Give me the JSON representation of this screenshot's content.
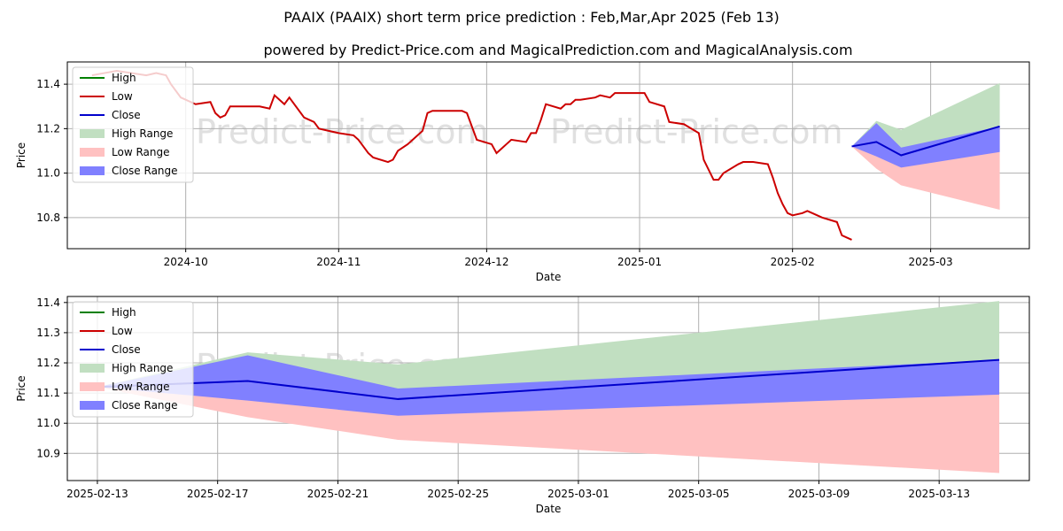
{
  "title": "PAAIX (PAAIX) short term price prediction : Feb,Mar,Apr 2025 (Feb 13)",
  "subtitle": "powered by Predict-Price.com and MagicalPrediction.com and MagicalAnalysis.com",
  "watermark": "Predict-Price.com",
  "legend": [
    "High",
    "Low",
    "Close",
    "High Range",
    "Low Range",
    "Close Range"
  ],
  "colors": {
    "high": "#008000",
    "low": "#cc0000",
    "close": "#0000cc",
    "high_range": "#c1dfc1",
    "low_range": "#ffc1c1",
    "close_range": "#8080ff",
    "grid": "#b0b0b0"
  },
  "chart_data": [
    {
      "type": "line",
      "xlabel": "Date",
      "ylabel": "Price",
      "ylim": [
        10.66,
        11.5
      ],
      "xlim": [
        "2024-09-07",
        "2025-03-21"
      ],
      "x_ticks": [
        "2024-10",
        "2024-11",
        "2024-12",
        "2025-01",
        "2025-02",
        "2025-03"
      ],
      "y_ticks": [
        10.8,
        11.0,
        11.2,
        11.4
      ],
      "grid": true,
      "legend_position": "upper-left",
      "series": [
        {
          "name": "Low",
          "x": [
            "2024-09-12",
            "2024-09-17",
            "2024-09-20",
            "2024-09-23",
            "2024-09-25",
            "2024-09-27",
            "2024-09-28",
            "2024-09-30",
            "2024-10-01",
            "2024-10-03",
            "2024-10-06",
            "2024-10-07",
            "2024-10-08",
            "2024-10-09",
            "2024-10-10",
            "2024-10-12",
            "2024-10-15",
            "2024-10-16",
            "2024-10-18",
            "2024-10-19",
            "2024-10-20",
            "2024-10-21",
            "2024-10-22",
            "2024-10-25",
            "2024-10-26",
            "2024-10-27",
            "2024-10-28",
            "2024-10-30",
            "2024-11-01",
            "2024-11-04",
            "2024-11-05",
            "2024-11-06",
            "2024-11-07",
            "2024-11-08",
            "2024-11-11",
            "2024-11-12",
            "2024-11-13",
            "2024-11-15",
            "2024-11-18",
            "2024-11-19",
            "2024-11-20",
            "2024-11-22",
            "2024-11-25",
            "2024-11-26",
            "2024-11-27",
            "2024-11-29",
            "2024-12-02",
            "2024-12-03",
            "2024-12-04",
            "2024-12-05",
            "2024-12-06",
            "2024-12-09",
            "2024-12-10",
            "2024-12-11",
            "2024-12-12",
            "2024-12-13",
            "2024-12-16",
            "2024-12-17",
            "2024-12-18",
            "2024-12-19",
            "2024-12-20",
            "2024-12-23",
            "2024-12-24",
            "2024-12-26",
            "2024-12-27",
            "2024-12-30",
            "2025-01-02",
            "2025-01-03",
            "2025-01-06",
            "2025-01-07",
            "2025-01-10",
            "2025-01-13",
            "2025-01-14",
            "2025-01-16",
            "2025-01-17",
            "2025-01-18",
            "2025-01-21",
            "2025-01-22",
            "2025-01-24",
            "2025-01-27",
            "2025-01-28",
            "2025-01-29",
            "2025-01-30",
            "2025-01-31",
            "2025-02-01",
            "2025-02-03",
            "2025-02-04",
            "2025-02-05",
            "2025-02-06",
            "2025-02-07",
            "2025-02-10",
            "2025-02-11",
            "2025-02-12",
            "2025-02-13"
          ],
          "y": [
            11.44,
            11.46,
            11.45,
            11.44,
            11.45,
            11.44,
            11.4,
            11.34,
            11.33,
            11.31,
            11.32,
            11.27,
            11.25,
            11.26,
            11.3,
            11.3,
            11.3,
            11.3,
            11.29,
            11.35,
            11.33,
            11.31,
            11.34,
            11.25,
            11.24,
            11.23,
            11.2,
            11.19,
            11.18,
            11.17,
            11.15,
            11.12,
            11.09,
            11.07,
            11.05,
            11.06,
            11.1,
            11.13,
            11.19,
            11.27,
            11.28,
            11.28,
            11.28,
            11.28,
            11.27,
            11.15,
            11.13,
            11.09,
            11.11,
            11.13,
            11.15,
            11.14,
            11.18,
            11.18,
            11.24,
            11.31,
            11.29,
            11.31,
            11.31,
            11.33,
            11.33,
            11.34,
            11.35,
            11.34,
            11.36,
            11.36,
            11.36,
            11.32,
            11.3,
            11.23,
            11.22,
            11.18,
            11.06,
            10.97,
            10.97,
            11.0,
            11.04,
            11.05,
            11.05,
            11.04,
            10.98,
            10.91,
            10.86,
            10.82,
            10.81,
            10.82,
            10.83,
            10.82,
            10.81,
            10.8,
            10.78,
            10.72,
            10.71,
            10.7
          ]
        },
        {
          "name": "Close",
          "x": [
            "2025-02-13",
            "2025-02-18",
            "2025-02-23",
            "2025-03-15"
          ],
          "y": [
            11.12,
            11.14,
            11.08,
            11.21
          ]
        }
      ]
    },
    {
      "type": "line",
      "xlabel": "Date",
      "ylabel": "Price",
      "ylim": [
        10.81,
        11.42
      ],
      "xlim": [
        "2025-02-12",
        "2025-03-16"
      ],
      "x_ticks": [
        "2025-02-13",
        "2025-02-17",
        "2025-02-21",
        "2025-02-25",
        "2025-03-01",
        "2025-03-05",
        "2025-03-09",
        "2025-03-13"
      ],
      "y_ticks": [
        10.9,
        11.0,
        11.1,
        11.2,
        11.3,
        11.4
      ],
      "grid": true,
      "legend_position": "upper-left",
      "series": [
        {
          "name": "Close",
          "x": [
            "2025-02-13",
            "2025-02-18",
            "2025-02-23",
            "2025-03-15"
          ],
          "y": [
            11.12,
            11.14,
            11.08,
            11.21
          ]
        },
        {
          "name": "High Range",
          "x": [
            "2025-02-13",
            "2025-02-18",
            "2025-02-23",
            "2025-03-15"
          ],
          "upper": [
            11.12,
            11.235,
            11.195,
            11.405
          ],
          "lower": [
            11.12,
            11.14,
            11.08,
            11.21
          ]
        },
        {
          "name": "Low Range",
          "x": [
            "2025-02-13",
            "2025-02-18",
            "2025-02-23",
            "2025-03-15"
          ],
          "upper": [
            11.12,
            11.14,
            11.08,
            11.21
          ],
          "lower": [
            11.12,
            11.02,
            10.945,
            10.835
          ]
        },
        {
          "name": "Close Range",
          "x": [
            "2025-02-13",
            "2025-02-18",
            "2025-02-23",
            "2025-03-15"
          ],
          "upper": [
            11.12,
            11.225,
            11.115,
            11.21
          ],
          "lower": [
            11.12,
            11.075,
            11.025,
            11.095
          ]
        }
      ]
    }
  ]
}
